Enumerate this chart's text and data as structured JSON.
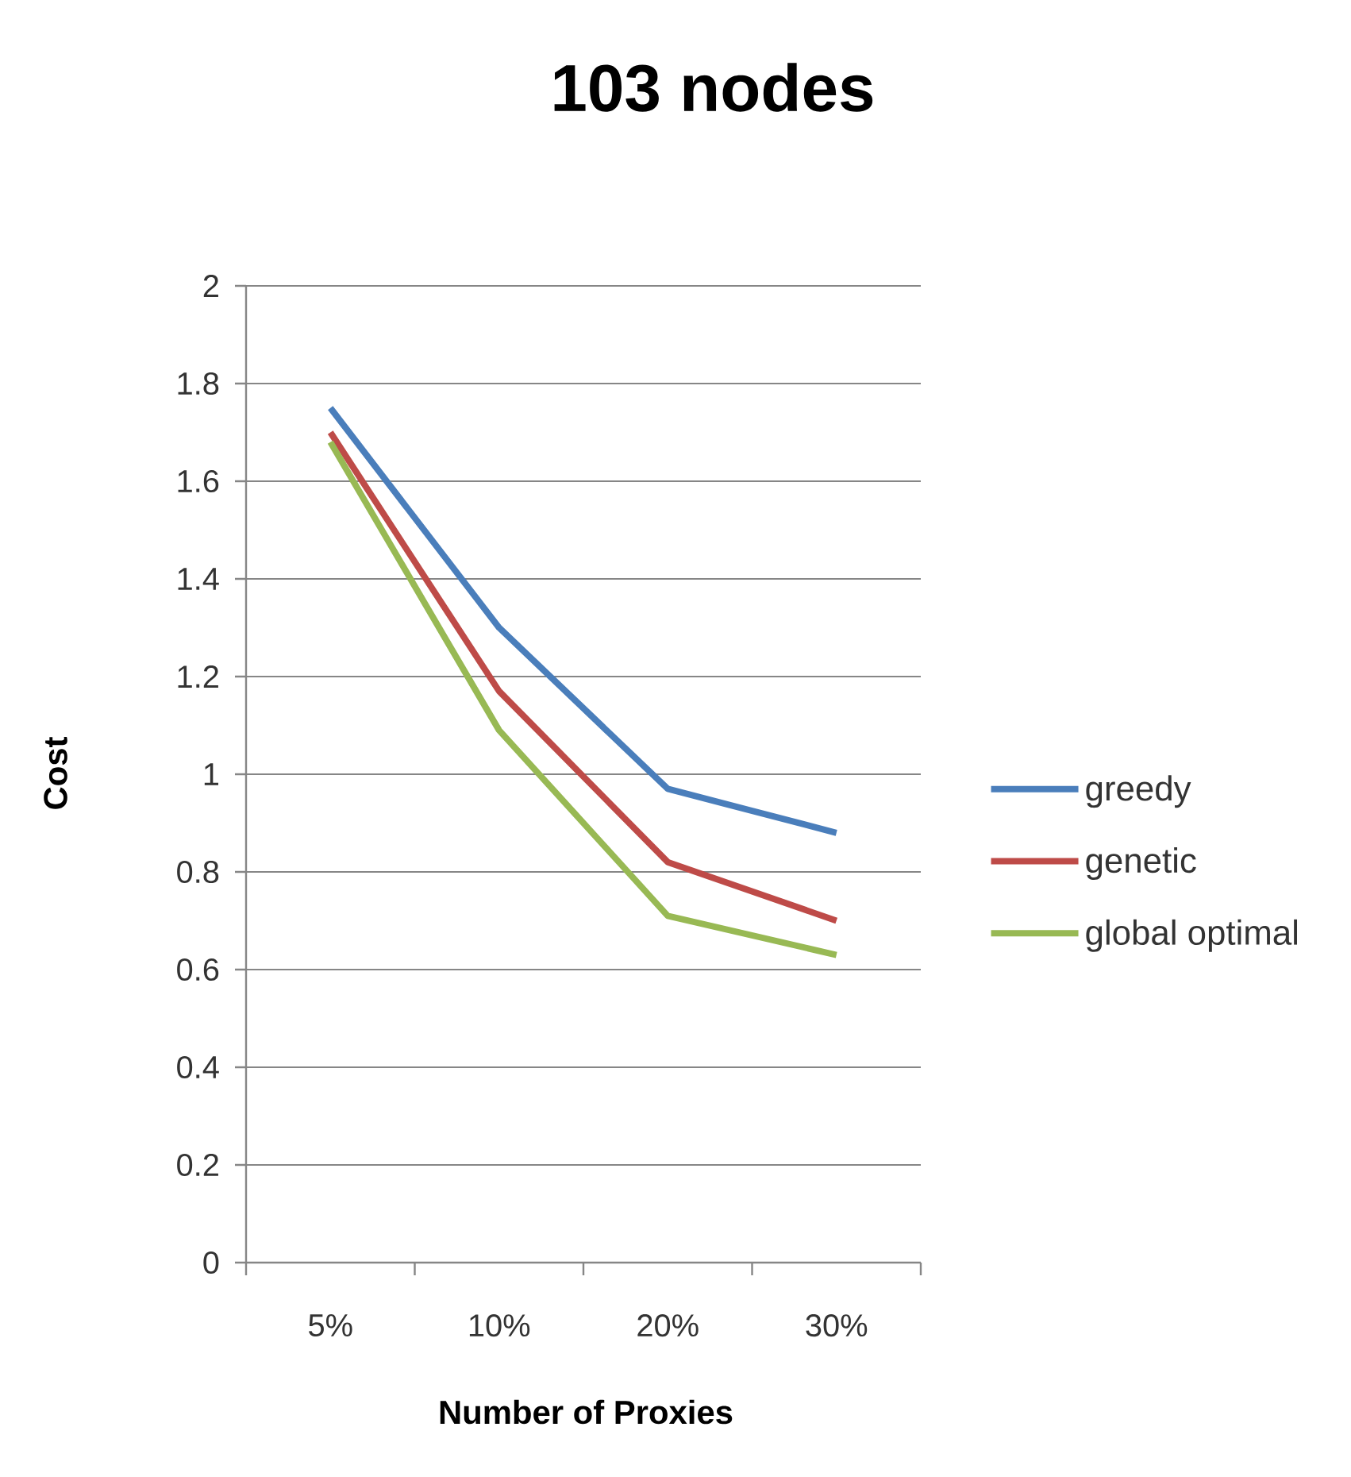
{
  "chart_data": {
    "type": "line",
    "title": "103 nodes",
    "xlabel": "Number of Proxies",
    "ylabel": "Cost",
    "categories": [
      "5%",
      "10%",
      "20%",
      "30%"
    ],
    "series": [
      {
        "name": "greedy",
        "color": "#4a7ebb",
        "values": [
          1.75,
          1.3,
          0.97,
          0.88
        ]
      },
      {
        "name": "genetic",
        "color": "#be4b48",
        "values": [
          1.7,
          1.17,
          0.82,
          0.7
        ]
      },
      {
        "name": "global optimal",
        "color": "#98b954",
        "values": [
          1.68,
          1.09,
          0.71,
          0.63
        ]
      }
    ],
    "ylim": [
      0,
      2
    ],
    "yticks": [
      0,
      0.2,
      0.4,
      0.6,
      0.8,
      1,
      1.2,
      1.4,
      1.6,
      1.8,
      2
    ],
    "grid": "y",
    "legend": "right"
  }
}
